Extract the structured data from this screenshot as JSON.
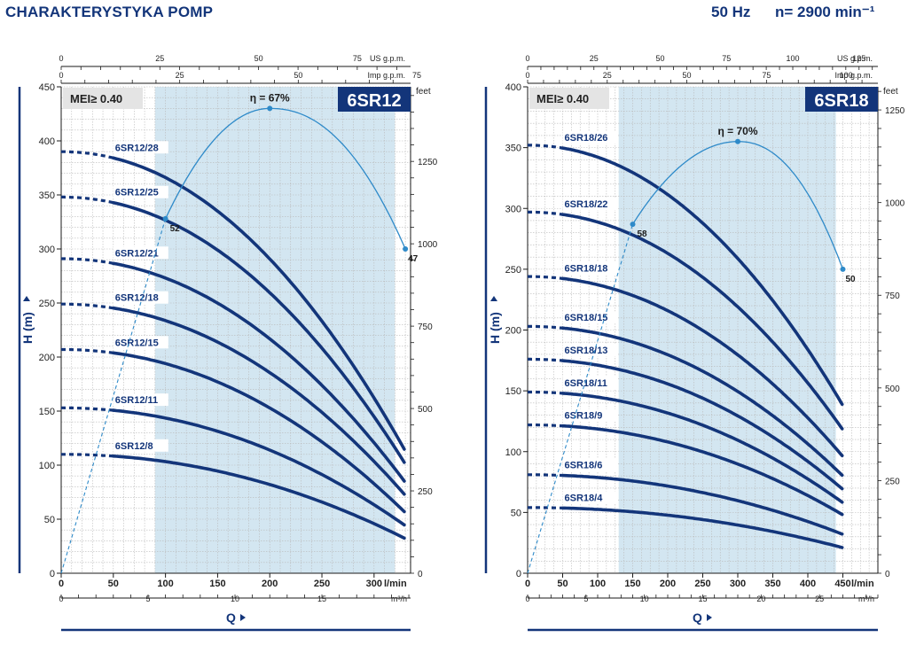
{
  "header": {
    "title": "CHARAKTERYSTYKA POMP",
    "frequency": "50 Hz",
    "speed": "n= 2900 min⁻¹"
  },
  "chart_data": [
    {
      "type": "line",
      "title": "6SR12",
      "mei_label": "MEI≥ 0.40",
      "ylabel": "H (m)",
      "xlabel": "Q",
      "x_unit_label": "l/min",
      "x2_unit_label": "m³/h",
      "top_us_label": "US g.p.m.",
      "top_imp_label": "Imp g.p.m.",
      "right_unit_label": "feet",
      "xlim": [
        0,
        335
      ],
      "ylim": [
        0,
        450
      ],
      "x_ticks": [
        0,
        50,
        100,
        150,
        200,
        250,
        300
      ],
      "x_tick_labels": [
        "0",
        "50",
        "100",
        "150",
        "200",
        "250",
        "300"
      ],
      "y_ticks": [
        0,
        50,
        100,
        150,
        200,
        250,
        300,
        350,
        400,
        450
      ],
      "y_tick_labels": [
        "0",
        "50",
        "100",
        "150",
        "200",
        "250",
        "300",
        "350",
        "400",
        "450"
      ],
      "m3h_ticks": [
        0,
        5,
        10,
        15,
        20
      ],
      "m3h_tick_labels": [
        "0",
        "5",
        "10",
        "15",
        "m³/h"
      ],
      "us_ticks": [
        0,
        25,
        50,
        75
      ],
      "us_tick_labels": [
        "0",
        "25",
        "50",
        "75"
      ],
      "imp_ticks": [
        0,
        25,
        50,
        75
      ],
      "imp_tick_labels": [
        "0",
        "25",
        "50",
        "75"
      ],
      "feet_ticks": [
        0,
        250,
        500,
        750,
        1000,
        1250
      ],
      "feet_tick_labels": [
        "0",
        "250",
        "500",
        "750",
        "1000",
        "1250"
      ],
      "recommended_range": [
        90,
        320
      ],
      "dashed_until": 50,
      "curves_end_q": 330,
      "series": [
        {
          "name": "6SR12/28",
          "label": "6SR12/28",
          "h0": 390,
          "hmax": 113
        },
        {
          "name": "6SR12/25",
          "label": "6SR12/25",
          "h0": 348,
          "hmax": 101
        },
        {
          "name": "6SR12/21",
          "label": "6SR12/21",
          "h0": 291,
          "hmax": 84
        },
        {
          "name": "6SR12/18",
          "label": "6SR12/18",
          "h0": 249,
          "hmax": 72
        },
        {
          "name": "6SR12/15",
          "label": "6SR12/15",
          "h0": 207,
          "hmax": 56
        },
        {
          "name": "6SR12/11",
          "label": "6SR12/11",
          "h0": 153,
          "hmax": 44
        },
        {
          "name": "6SR12/8",
          "label": "6SR12/8",
          "h0": 110,
          "hmax": 32
        }
      ],
      "efficiency": {
        "label": "η = 67%",
        "start_q": 0,
        "start_h": 0,
        "q1": 100,
        "h1": 328,
        "label_1": "52",
        "peak_q": 200,
        "peak_h": 430,
        "end_q": 330,
        "end_h": 300,
        "label_end": "47"
      }
    },
    {
      "type": "line",
      "title": "6SR18",
      "mei_label": "MEI≥ 0.40",
      "ylabel": "H (m)",
      "xlabel": "Q",
      "x_unit_label": "l/min",
      "x2_unit_label": "m³/h",
      "top_us_label": "US g.p.m.",
      "top_imp_label": "Imp g.p.m.",
      "right_unit_label": "feet",
      "xlim": [
        0,
        500
      ],
      "ylim": [
        0,
        400
      ],
      "x_ticks": [
        0,
        50,
        100,
        150,
        200,
        250,
        300,
        350,
        400,
        450
      ],
      "x_tick_labels": [
        "0",
        "50",
        "100",
        "150",
        "200",
        "250",
        "300",
        "350",
        "400",
        "450"
      ],
      "y_ticks": [
        0,
        50,
        100,
        150,
        200,
        250,
        300,
        350,
        400
      ],
      "y_tick_labels": [
        "0",
        "50",
        "100",
        "150",
        "200",
        "250",
        "300",
        "350",
        "400"
      ],
      "m3h_ticks": [
        0,
        5,
        10,
        15,
        20,
        25,
        30
      ],
      "m3h_tick_labels": [
        "0",
        "5",
        "10",
        "15",
        "20",
        "25",
        "m³/h"
      ],
      "us_ticks": [
        0,
        25,
        50,
        75,
        100,
        125
      ],
      "us_tick_labels": [
        "0",
        "25",
        "50",
        "75",
        "100",
        "125"
      ],
      "imp_ticks": [
        0,
        25,
        50,
        75,
        100
      ],
      "imp_tick_labels": [
        "0",
        "25",
        "50",
        "75",
        "100"
      ],
      "feet_ticks": [
        0,
        250,
        500,
        750,
        1000,
        1250
      ],
      "feet_tick_labels": [
        "0",
        "250",
        "500",
        "750",
        "1000",
        "1250"
      ],
      "recommended_range": [
        130,
        440
      ],
      "dashed_until": 50,
      "curves_end_q": 450,
      "series": [
        {
          "name": "6SR18/26",
          "label": "6SR18/26",
          "h0": 352,
          "hmax": 138
        },
        {
          "name": "6SR18/22",
          "label": "6SR18/22",
          "h0": 297,
          "hmax": 118
        },
        {
          "name": "6SR18/18",
          "label": "6SR18/18",
          "h0": 244,
          "hmax": 96
        },
        {
          "name": "6SR18/15",
          "label": "6SR18/15",
          "h0": 203,
          "hmax": 80
        },
        {
          "name": "6SR18/13",
          "label": "6SR18/13",
          "h0": 176,
          "hmax": 69
        },
        {
          "name": "6SR18/11",
          "label": "6SR18/11",
          "h0": 149,
          "hmax": 58
        },
        {
          "name": "6SR18/9",
          "label": "6SR18/9",
          "h0": 122,
          "hmax": 48
        },
        {
          "name": "6SR18/6",
          "label": "6SR18/6",
          "h0": 81,
          "hmax": 32
        },
        {
          "name": "6SR18/4",
          "label": "6SR18/4",
          "h0": 54,
          "hmax": 21
        }
      ],
      "efficiency": {
        "label": "η = 70%",
        "start_q": 0,
        "start_h": 0,
        "q1": 150,
        "h1": 287,
        "label_1": "58",
        "peak_q": 300,
        "peak_h": 355,
        "end_q": 450,
        "end_h": 250,
        "label_end": "50"
      }
    }
  ]
}
